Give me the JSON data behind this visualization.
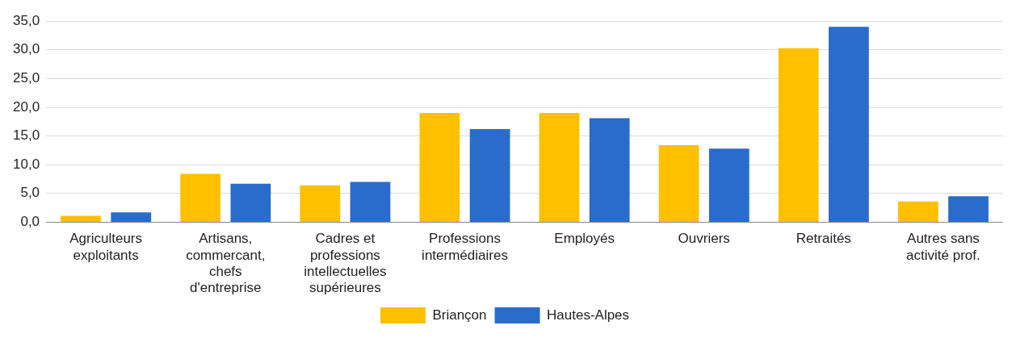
{
  "chart_data": {
    "type": "bar",
    "categories": [
      "Agriculteurs exploitants",
      "Artisans, commercant, chefs d'entreprise",
      "Cadres et professions intellectuelles supérieures",
      "Professions intermédiaires",
      "Employés",
      "Ouvriers",
      "Retraités",
      "Autres sans activité prof."
    ],
    "series": [
      {
        "name": "Briançon",
        "color": "#ffc000",
        "values": [
          1.1,
          8.4,
          6.4,
          19.0,
          19.0,
          13.4,
          30.3,
          3.6
        ]
      },
      {
        "name": "Hautes-Alpes",
        "color": "#2a6ccc",
        "values": [
          1.7,
          6.7,
          7.0,
          16.2,
          18.1,
          12.8,
          34.0,
          4.5
        ]
      }
    ],
    "ylim": [
      0,
      35
    ],
    "yticks": [
      {
        "value": 0,
        "label": "0,0"
      },
      {
        "value": 5,
        "label": "5,0"
      },
      {
        "value": 10,
        "label": "10,0"
      },
      {
        "value": 15,
        "label": "15,0"
      },
      {
        "value": 20,
        "label": "20,0"
      },
      {
        "value": 25,
        "label": "25,0"
      },
      {
        "value": 30,
        "label": "30,0"
      },
      {
        "value": 35,
        "label": "35,0"
      }
    ],
    "grid": "y",
    "legend": "bottom"
  }
}
